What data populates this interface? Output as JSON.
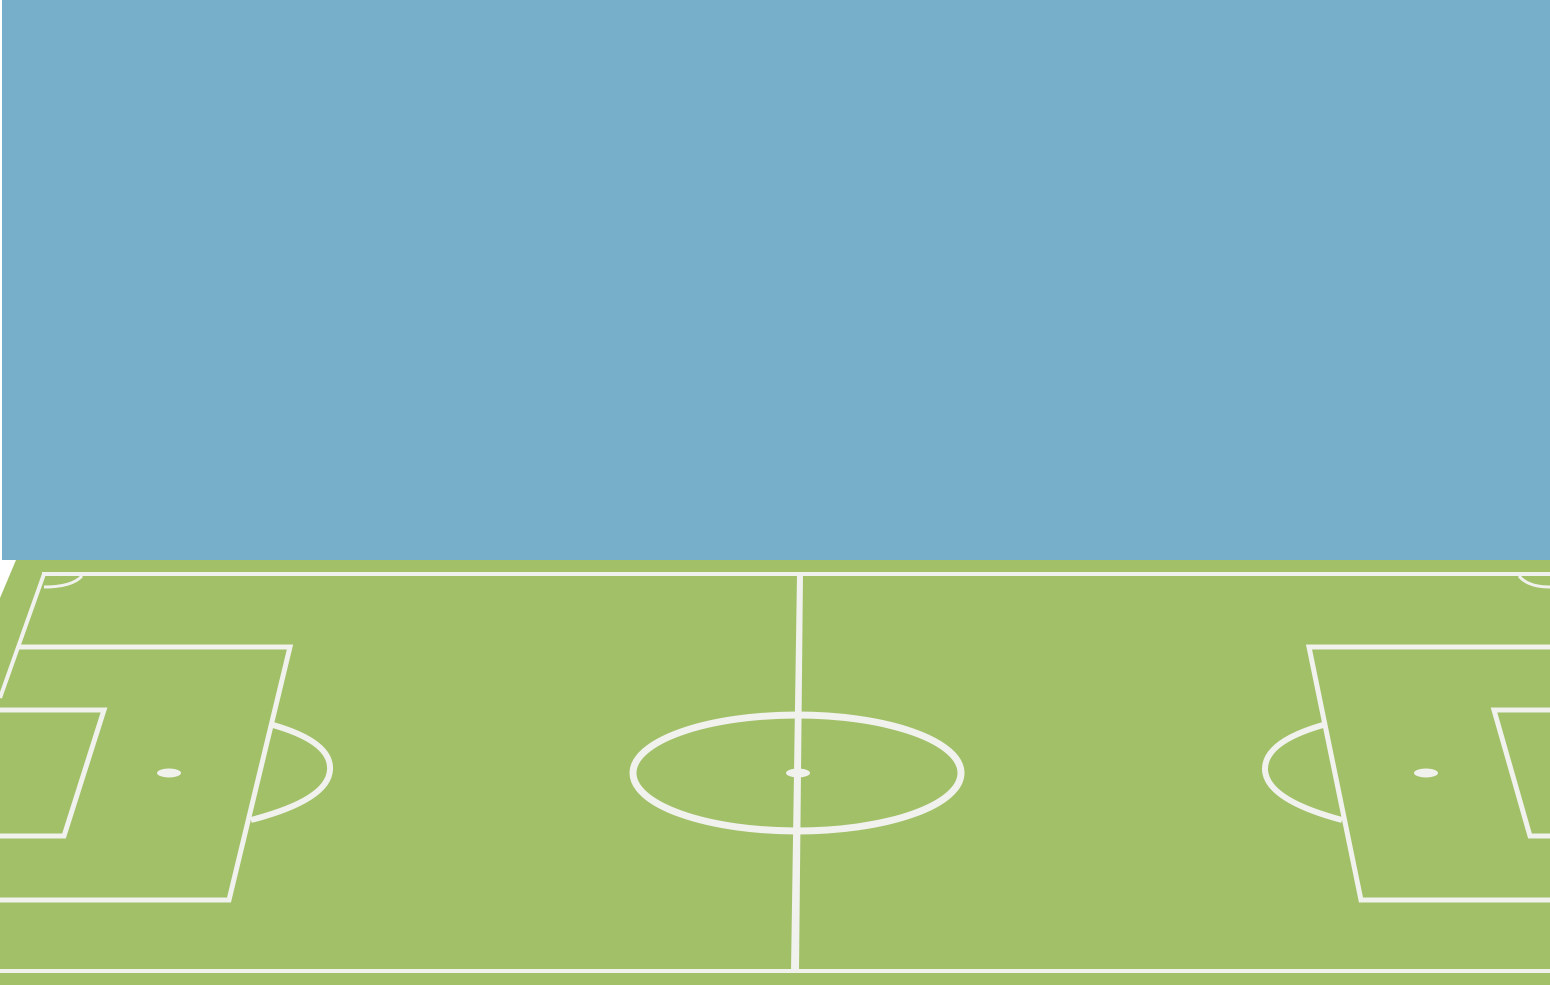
{
  "scene": {
    "colors": {
      "sky": "#77afca",
      "grass": "#a1c068",
      "lines": "#f1f1ee",
      "edge": "#ffffff"
    }
  }
}
